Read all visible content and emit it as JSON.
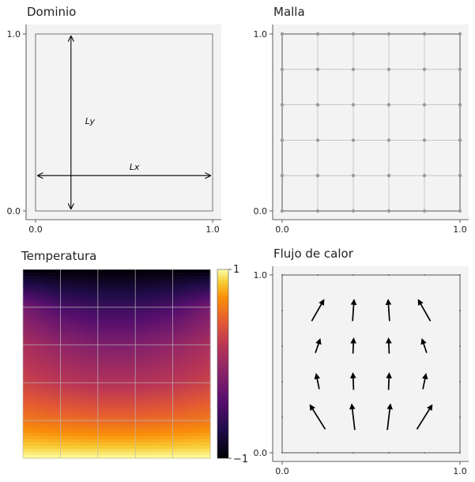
{
  "chart_data": [
    {
      "type": "diagram",
      "title": "Dominio",
      "xticks": [
        "0.0",
        "1.0"
      ],
      "yticks": [
        "0.0",
        "1.0"
      ],
      "xlim": [
        -0.05,
        1.05
      ],
      "ylim": [
        -0.05,
        1.05
      ],
      "domain_box": [
        [
          0,
          0
        ],
        [
          1,
          1
        ]
      ],
      "annotations": [
        {
          "label": "Lx",
          "from": [
            0.0,
            0.2
          ],
          "to": [
            1.0,
            0.2
          ],
          "label_at": [
            0.53,
            0.25
          ]
        },
        {
          "label": "Ly",
          "from": [
            0.2,
            0.0
          ],
          "to": [
            0.2,
            1.0
          ],
          "label_at": [
            0.28,
            0.51
          ]
        }
      ]
    },
    {
      "type": "scatter",
      "title": "Malla",
      "xticks": [
        "0.0",
        "1.0"
      ],
      "yticks": [
        "0.0",
        "1.0"
      ],
      "xlim": [
        -0.05,
        1.05
      ],
      "ylim": [
        -0.05,
        1.05
      ],
      "grid_x": [
        0,
        0.2,
        0.4,
        0.6,
        0.8,
        1.0
      ],
      "grid_y": [
        0,
        0.2,
        0.4,
        0.6,
        0.8,
        1.0
      ]
    },
    {
      "type": "heatmap",
      "title": "Temperatura",
      "colormap": "inferno",
      "colorbar_ticks": [
        "1",
        "−1"
      ],
      "colorbar_range": [
        -1,
        1
      ],
      "x_grid": [
        0,
        0.2,
        0.4,
        0.6,
        0.8,
        1.0
      ],
      "y_grid": [
        0,
        0.2,
        0.4,
        0.6,
        0.8,
        1.0
      ],
      "values_by_row_top_to_bottom": [
        [
          -1.0,
          -1.0,
          -1.0,
          -1.0,
          -1.0,
          -1.0
        ],
        [
          -0.2,
          -0.45,
          -0.55,
          -0.55,
          -0.45,
          -0.2
        ],
        [
          0.1,
          -0.05,
          -0.15,
          -0.15,
          -0.05,
          0.1
        ],
        [
          0.3,
          0.2,
          0.15,
          0.15,
          0.2,
          0.3
        ],
        [
          0.6,
          0.55,
          0.52,
          0.52,
          0.55,
          0.6
        ],
        [
          1.0,
          1.0,
          1.0,
          1.0,
          1.0,
          1.0
        ]
      ]
    },
    {
      "type": "quiver",
      "title": "Flujo de calor",
      "xticks": [
        "0.0",
        "1.0"
      ],
      "yticks": [
        "0.0",
        "1.0"
      ],
      "xlim": [
        0,
        1
      ],
      "ylim": [
        0,
        1
      ],
      "grid_x": [
        0,
        0.2,
        0.4,
        0.6,
        0.8,
        1.0
      ],
      "grid_y": [
        0,
        0.2,
        0.4,
        0.6,
        0.8,
        1.0
      ],
      "arrows": [
        {
          "x": 0.2,
          "y": 0.8,
          "u": 0.4,
          "v": 0.7
        },
        {
          "x": 0.4,
          "y": 0.8,
          "u": 0.05,
          "v": 0.7
        },
        {
          "x": 0.6,
          "y": 0.8,
          "u": -0.05,
          "v": 0.7
        },
        {
          "x": 0.8,
          "y": 0.8,
          "u": -0.4,
          "v": 0.7
        },
        {
          "x": 0.2,
          "y": 0.6,
          "u": 0.15,
          "v": 0.45
        },
        {
          "x": 0.4,
          "y": 0.6,
          "u": 0.02,
          "v": 0.5
        },
        {
          "x": 0.6,
          "y": 0.6,
          "u": -0.02,
          "v": 0.5
        },
        {
          "x": 0.8,
          "y": 0.6,
          "u": -0.15,
          "v": 0.45
        },
        {
          "x": 0.2,
          "y": 0.4,
          "u": -0.1,
          "v": 0.5
        },
        {
          "x": 0.4,
          "y": 0.4,
          "u": -0.02,
          "v": 0.55
        },
        {
          "x": 0.6,
          "y": 0.4,
          "u": 0.02,
          "v": 0.55
        },
        {
          "x": 0.8,
          "y": 0.4,
          "u": 0.1,
          "v": 0.5
        },
        {
          "x": 0.2,
          "y": 0.2,
          "u": -0.5,
          "v": 0.8
        },
        {
          "x": 0.4,
          "y": 0.2,
          "u": -0.1,
          "v": 0.85
        },
        {
          "x": 0.6,
          "y": 0.2,
          "u": 0.1,
          "v": 0.85
        },
        {
          "x": 0.8,
          "y": 0.2,
          "u": 0.5,
          "v": 0.8
        }
      ]
    }
  ]
}
